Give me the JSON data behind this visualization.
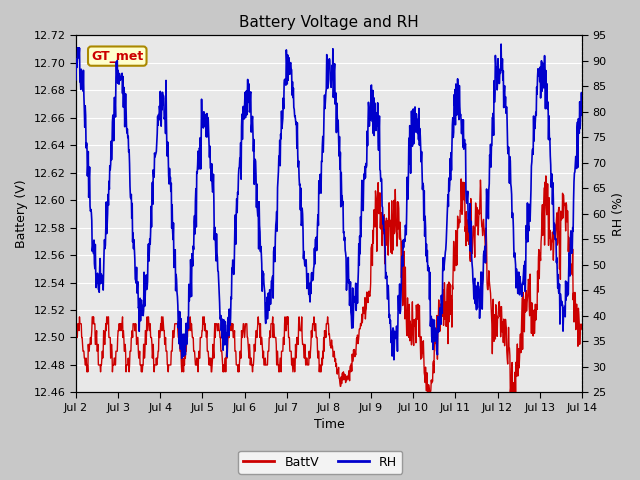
{
  "title": "Battery Voltage and RH",
  "xlabel": "Time",
  "ylabel_left": "Battery (V)",
  "ylabel_right": "RH (%)",
  "annotation": "GT_met",
  "ylim_left": [
    12.46,
    12.72
  ],
  "ylim_right": [
    25,
    95
  ],
  "yticks_left": [
    12.46,
    12.48,
    12.5,
    12.52,
    12.54,
    12.56,
    12.58,
    12.6,
    12.62,
    12.64,
    12.66,
    12.68,
    12.7,
    12.72
  ],
  "yticks_right": [
    25,
    30,
    35,
    40,
    45,
    50,
    55,
    60,
    65,
    70,
    75,
    80,
    85,
    90,
    95
  ],
  "color_battv": "#cc0000",
  "color_rh": "#0000cc",
  "fig_bg": "#c8c8c8",
  "plot_bg": "#e8e8e8",
  "grid_color": "#ffffff",
  "legend_battv": "BattV",
  "legend_rh": "RH",
  "x_tick_labels": [
    "Jul 2",
    "Jul 3",
    "Jul 4",
    "Jul 5",
    "Jul 6",
    "Jul 7",
    "Jul 8",
    "Jul 9",
    "Jul 10",
    "Jul 11",
    "Jul 12",
    "Jul 13",
    "Jul 14"
  ],
  "x_tick_positions": [
    0,
    24,
    48,
    72,
    96,
    120,
    144,
    168,
    192,
    216,
    240,
    264,
    288
  ],
  "xlim": [
    0,
    288
  ],
  "title_fontsize": 11,
  "axis_fontsize": 9,
  "tick_fontsize": 8
}
